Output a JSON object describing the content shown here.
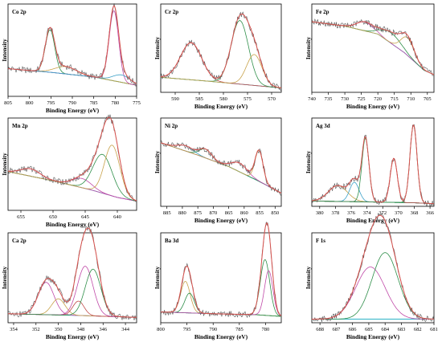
{
  "chart_data": [
    {
      "type": "line",
      "title": "Co 2p",
      "xlabel": "Binding Energy (eV)",
      "ylabel": "Intensity",
      "xlim": [
        805,
        775
      ],
      "xticks": [
        805,
        800,
        795,
        790,
        785,
        780,
        775
      ],
      "background": [
        [
          805,
          0.3
        ],
        [
          795,
          0.26
        ],
        [
          785,
          0.21
        ],
        [
          775,
          0.12
        ]
      ],
      "peaks": [
        {
          "center": 795.2,
          "height": 0.46,
          "width": 1.1,
          "color": "#2f8f4a"
        },
        {
          "center": 791.5,
          "height": 0.08,
          "width": 2.5,
          "color": "#c8a24a"
        },
        {
          "center": 780.3,
          "height": 0.76,
          "width": 1.1,
          "color": "#c04aa8"
        },
        {
          "center": 778.5,
          "height": 0.08,
          "width": 2.0,
          "color": "#3aa0c8"
        }
      ]
    },
    {
      "type": "line",
      "title": "Cr 2p",
      "xlabel": "Binding Energy (eV)",
      "ylabel": "Intensity",
      "xlim": [
        593,
        568
      ],
      "xticks": [
        590,
        585,
        580,
        575,
        570
      ],
      "background": [
        [
          593,
          0.17
        ],
        [
          584,
          0.13
        ],
        [
          576,
          0.09
        ],
        [
          568,
          0.05
        ]
      ],
      "peaks": [
        {
          "center": 586.7,
          "height": 0.42,
          "width": 2.2,
          "color": "#c04a4a"
        },
        {
          "center": 576.6,
          "height": 0.72,
          "width": 1.8,
          "color": "#2f8f4a"
        },
        {
          "center": 573.6,
          "height": 0.35,
          "width": 1.6,
          "color": "#c8a24a"
        }
      ]
    },
    {
      "type": "line",
      "title": "Fe 2p",
      "xlabel": "Binding Energy (eV)",
      "ylabel": "Intensity",
      "xlim": [
        740,
        703
      ],
      "xticks": [
        740,
        735,
        730,
        725,
        720,
        715,
        710,
        705
      ],
      "background": [
        [
          740,
          0.8
        ],
        [
          730,
          0.75
        ],
        [
          720,
          0.66
        ],
        [
          712,
          0.45
        ],
        [
          706,
          0.25
        ],
        [
          703,
          0.2
        ]
      ],
      "peaks": [
        {
          "center": 724.0,
          "height": 0.1,
          "width": 2.5,
          "color": "#c04aa8"
        },
        {
          "center": 716.0,
          "height": 0.12,
          "width": 3.0,
          "color": "#2f8f4a"
        },
        {
          "center": 711.0,
          "height": 0.2,
          "width": 2.0,
          "color": "#c8a24a"
        }
      ]
    },
    {
      "type": "line",
      "title": "Mn 2p",
      "xlabel": "Binding Energy (eV)",
      "ylabel": "Intensity",
      "xlim": [
        657,
        637
      ],
      "xticks": [
        655,
        650,
        645,
        640
      ],
      "background": [
        [
          657,
          0.42
        ],
        [
          650,
          0.32
        ],
        [
          644,
          0.22
        ],
        [
          640,
          0.14
        ],
        [
          637,
          0.1
        ]
      ],
      "peaks": [
        {
          "center": 653.5,
          "height": 0.08,
          "width": 1.5,
          "color": "#c04aa8"
        },
        {
          "center": 645.5,
          "height": 0.1,
          "width": 1.5,
          "color": "#c04aa8"
        },
        {
          "center": 642.3,
          "height": 0.42,
          "width": 1.5,
          "color": "#2f8f4a"
        },
        {
          "center": 640.8,
          "height": 0.55,
          "width": 1.2,
          "color": "#c8a24a"
        }
      ]
    },
    {
      "type": "line",
      "title": "Ni 2p",
      "xlabel": "Binding Energy (eV)",
      "ylabel": "Intensity",
      "xlim": [
        887,
        848
      ],
      "xticks": [
        885,
        880,
        875,
        870,
        865,
        860,
        855,
        850
      ],
      "background": [
        [
          887,
          0.72
        ],
        [
          875,
          0.58
        ],
        [
          865,
          0.45
        ],
        [
          855,
          0.28
        ],
        [
          848,
          0.15
        ]
      ],
      "peaks": [
        {
          "center": 879.0,
          "height": 0.06,
          "width": 2.5,
          "color": "#3aa0c8"
        },
        {
          "center": 872.5,
          "height": 0.1,
          "width": 2.0,
          "color": "#2f8f4a"
        },
        {
          "center": 861.5,
          "height": 0.1,
          "width": 2.5,
          "color": "#c04aa8"
        },
        {
          "center": 855.2,
          "height": 0.35,
          "width": 1.3,
          "color": "#c8a24a"
        }
      ]
    },
    {
      "type": "line",
      "title": "Ag 3d",
      "xlabel": "Binding Energy (eV)",
      "ylabel": "Intensity",
      "xlim": [
        381,
        365.5
      ],
      "xticks": [
        380,
        378,
        376,
        374,
        372,
        370,
        368,
        366
      ],
      "background": [
        [
          381,
          0.06
        ],
        [
          374,
          0.05
        ],
        [
          368,
          0.04
        ],
        [
          365.5,
          0.03
        ]
      ],
      "peaks": [
        {
          "center": 377.7,
          "height": 0.18,
          "width": 1.2,
          "color": "#c8a24a"
        },
        {
          "center": 375.6,
          "height": 0.22,
          "width": 0.6,
          "color": "#3aa0c8"
        },
        {
          "center": 374.2,
          "height": 0.72,
          "width": 0.45,
          "color": "#2f8f4a"
        },
        {
          "center": 370.6,
          "height": 0.5,
          "width": 0.45,
          "color": "#c04a4a"
        },
        {
          "center": 368.1,
          "height": 0.88,
          "width": 0.45,
          "color": "#2f8f4a"
        }
      ]
    },
    {
      "type": "line",
      "title": "Ca 2p",
      "xlabel": "Binding Energy (eV)",
      "ylabel": "Intensity",
      "xlim": [
        354.5,
        343
      ],
      "xticks": [
        354,
        352,
        350,
        348,
        346,
        344
      ],
      "background": [
        [
          354.5,
          0.1
        ],
        [
          348,
          0.08
        ],
        [
          343,
          0.06
        ]
      ],
      "peaks": [
        {
          "center": 351.1,
          "height": 0.36,
          "width": 0.7,
          "color": "#c04aa8"
        },
        {
          "center": 350.0,
          "height": 0.18,
          "width": 0.6,
          "color": "#c8a24a"
        },
        {
          "center": 348.2,
          "height": 0.16,
          "width": 0.5,
          "color": "#c04a4a"
        },
        {
          "center": 347.6,
          "height": 0.55,
          "width": 0.7,
          "color": "#c04aa8"
        },
        {
          "center": 346.9,
          "height": 0.52,
          "width": 0.7,
          "color": "#2f8f4a"
        }
      ]
    },
    {
      "type": "line",
      "title": "Ba 3d",
      "xlabel": "Binding Energy (eV)",
      "ylabel": "Intensity",
      "xlim": [
        800,
        777
      ],
      "xticks": [
        800,
        795,
        790,
        785,
        780
      ],
      "background": [
        [
          800,
          0.12
        ],
        [
          790,
          0.1
        ],
        [
          782,
          0.09
        ],
        [
          777,
          0.07
        ]
      ],
      "peaks": [
        {
          "center": 795.3,
          "height": 0.35,
          "width": 0.9,
          "color": "#c8a24a"
        },
        {
          "center": 794.5,
          "height": 0.22,
          "width": 0.9,
          "color": "#2f8f4a"
        },
        {
          "center": 780.1,
          "height": 0.62,
          "width": 0.9,
          "color": "#2f8f4a"
        },
        {
          "center": 779.4,
          "height": 0.5,
          "width": 0.8,
          "color": "#c04aa8"
        }
      ]
    },
    {
      "type": "line",
      "title": "F 1s",
      "xlabel": "Binding Energy (eV)",
      "ylabel": "Intensity",
      "xlim": [
        688.5,
        681
      ],
      "xticks": [
        688,
        687,
        686,
        685,
        684,
        683,
        682,
        681
      ],
      "background": [
        [
          688.5,
          0.04
        ],
        [
          684,
          0.04
        ],
        [
          681,
          0.04
        ]
      ],
      "peaks": [
        {
          "center": 684.9,
          "height": 0.58,
          "width": 0.9,
          "color": "#c04aa8"
        },
        {
          "center": 684.0,
          "height": 0.74,
          "width": 0.8,
          "color": "#2f8f4a"
        }
      ]
    }
  ]
}
